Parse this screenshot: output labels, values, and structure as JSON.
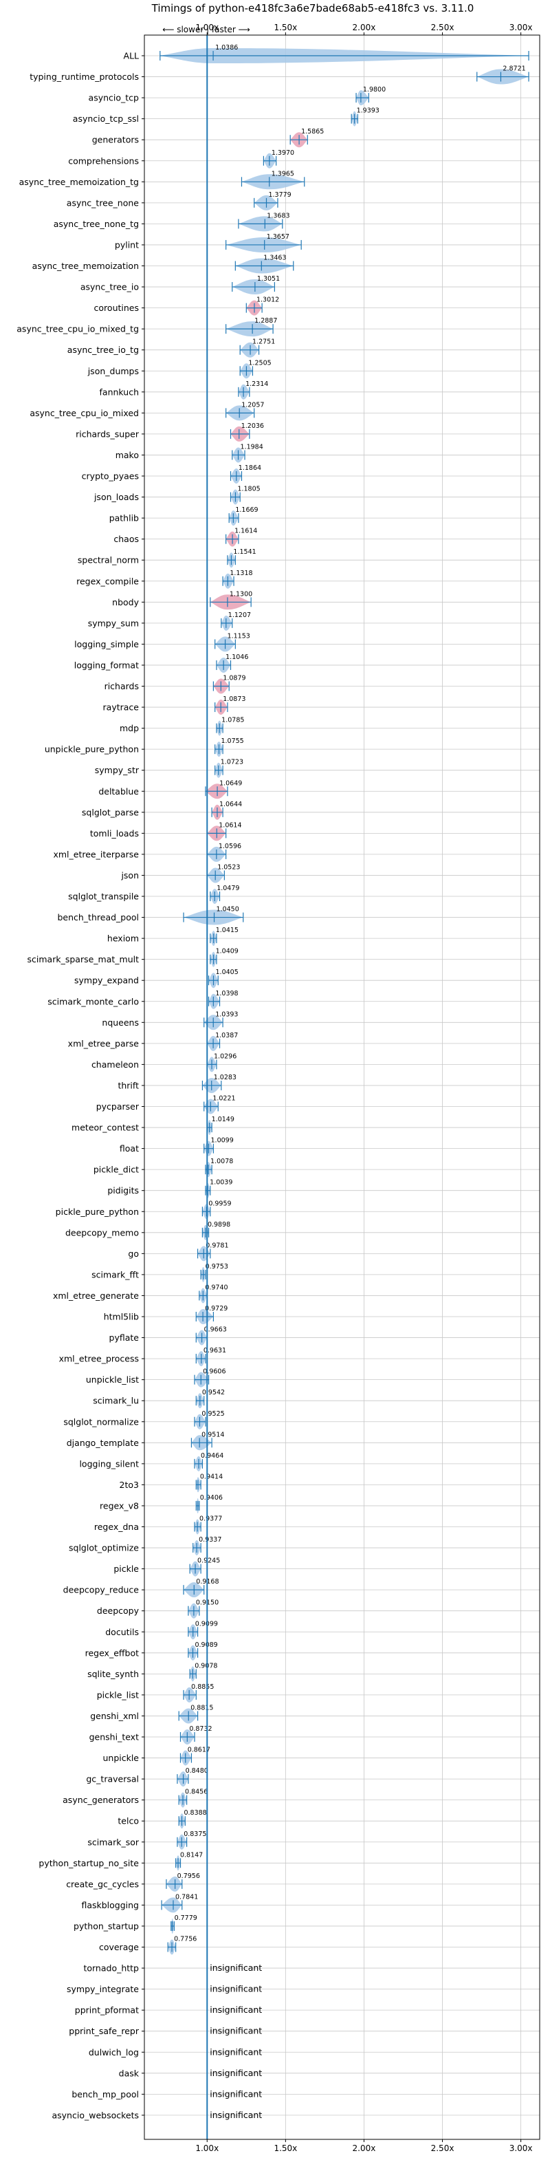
{
  "chart_data": {
    "type": "violin",
    "title": "Timings of python-e418fc3a6e7bade68ab5-e418fc3 vs. 3.11.0",
    "direction_hint": "⟵ slower | faster ⟶",
    "xlim": [
      0.6,
      3.12
    ],
    "x_ticks": [
      1.0,
      1.5,
      2.0,
      2.5,
      3.0
    ],
    "x_tick_labels": [
      "1.00x",
      "1.50x",
      "2.00x",
      "2.50x",
      "3.00x"
    ],
    "grid": true,
    "reference_line": 1.0,
    "colors": {
      "violin": "#a6c8e8",
      "violin_edge": "#7fb0dc",
      "significant": "#e8a0b4",
      "whisker": "#1f77b4",
      "grid": "#c8c8c8",
      "ref": "#1f77b4"
    },
    "benchmarks": [
      {
        "name": "ALL",
        "value": 1.0386,
        "label": "1.0386",
        "min": 0.7,
        "max": 3.05,
        "spread": 0.12,
        "hl": false
      },
      {
        "name": "typing_runtime_protocols",
        "value": 2.8721,
        "label": "2.8721",
        "min": 2.72,
        "max": 3.05,
        "spread": 0.09,
        "hl": false
      },
      {
        "name": "asyncio_tcp",
        "value": 1.98,
        "label": "1.9800",
        "min": 1.95,
        "max": 2.03,
        "spread": 0.03,
        "hl": false
      },
      {
        "name": "asyncio_tcp_ssl",
        "value": 1.9393,
        "label": "1.9393",
        "min": 1.92,
        "max": 1.96,
        "spread": 0.02,
        "hl": false
      },
      {
        "name": "generators",
        "value": 1.5865,
        "label": "1.5865",
        "min": 1.53,
        "max": 1.64,
        "spread": 0.04,
        "hl": true
      },
      {
        "name": "comprehensions",
        "value": 1.397,
        "label": "1.3970",
        "min": 1.36,
        "max": 1.44,
        "spread": 0.04,
        "hl": false
      },
      {
        "name": "async_tree_memoization_tg",
        "value": 1.3965,
        "label": "1.3965",
        "min": 1.22,
        "max": 1.62,
        "spread": 0.1,
        "hl": false
      },
      {
        "name": "async_tree_none",
        "value": 1.3779,
        "label": "1.3779",
        "min": 1.3,
        "max": 1.45,
        "spread": 0.05,
        "hl": false
      },
      {
        "name": "async_tree_none_tg",
        "value": 1.3683,
        "label": "1.3683",
        "min": 1.2,
        "max": 1.48,
        "spread": 0.08,
        "hl": false
      },
      {
        "name": "pylint",
        "value": 1.3657,
        "label": "1.3657",
        "min": 1.12,
        "max": 1.6,
        "spread": 0.12,
        "hl": false
      },
      {
        "name": "async_tree_memoization",
        "value": 1.3463,
        "label": "1.3463",
        "min": 1.18,
        "max": 1.55,
        "spread": 0.1,
        "hl": false
      },
      {
        "name": "async_tree_io",
        "value": 1.3051,
        "label": "1.3051",
        "min": 1.16,
        "max": 1.43,
        "spread": 0.08,
        "hl": false
      },
      {
        "name": "coroutines",
        "value": 1.3012,
        "label": "1.3012",
        "min": 1.25,
        "max": 1.35,
        "spread": 0.03,
        "hl": true
      },
      {
        "name": "async_tree_cpu_io_mixed_tg",
        "value": 1.2887,
        "label": "1.2887",
        "min": 1.12,
        "max": 1.42,
        "spread": 0.09,
        "hl": false
      },
      {
        "name": "async_tree_io_tg",
        "value": 1.2751,
        "label": "1.2751",
        "min": 1.21,
        "max": 1.33,
        "spread": 0.05,
        "hl": false
      },
      {
        "name": "json_dumps",
        "value": 1.2505,
        "label": "1.2505",
        "min": 1.21,
        "max": 1.29,
        "spread": 0.04,
        "hl": false
      },
      {
        "name": "fannkuch",
        "value": 1.2314,
        "label": "1.2314",
        "min": 1.2,
        "max": 1.27,
        "spread": 0.04,
        "hl": false
      },
      {
        "name": "async_tree_cpu_io_mixed",
        "value": 1.2057,
        "label": "1.2057",
        "min": 1.12,
        "max": 1.3,
        "spread": 0.06,
        "hl": false
      },
      {
        "name": "richards_super",
        "value": 1.2036,
        "label": "1.2036",
        "min": 1.15,
        "max": 1.27,
        "spread": 0.05,
        "hl": true
      },
      {
        "name": "mako",
        "value": 1.1984,
        "label": "1.1984",
        "min": 1.16,
        "max": 1.24,
        "spread": 0.03,
        "hl": false
      },
      {
        "name": "crypto_pyaes",
        "value": 1.1864,
        "label": "1.1864",
        "min": 1.15,
        "max": 1.22,
        "spread": 0.03,
        "hl": false
      },
      {
        "name": "json_loads",
        "value": 1.1805,
        "label": "1.1805",
        "min": 1.15,
        "max": 1.21,
        "spread": 0.03,
        "hl": false
      },
      {
        "name": "pathlib",
        "value": 1.1669,
        "label": "1.1669",
        "min": 1.14,
        "max": 1.2,
        "spread": 0.03,
        "hl": false
      },
      {
        "name": "chaos",
        "value": 1.1614,
        "label": "1.1614",
        "min": 1.12,
        "max": 1.2,
        "spread": 0.04,
        "hl": true
      },
      {
        "name": "spectral_norm",
        "value": 1.1541,
        "label": "1.1541",
        "min": 1.13,
        "max": 1.18,
        "spread": 0.02,
        "hl": false
      },
      {
        "name": "regex_compile",
        "value": 1.1318,
        "label": "1.1318",
        "min": 1.1,
        "max": 1.17,
        "spread": 0.03,
        "hl": false
      },
      {
        "name": "nbody",
        "value": 1.13,
        "label": "1.1300",
        "min": 1.02,
        "max": 1.28,
        "spread": 0.08,
        "hl": true
      },
      {
        "name": "sympy_sum",
        "value": 1.1207,
        "label": "1.1207",
        "min": 1.09,
        "max": 1.16,
        "spread": 0.03,
        "hl": false
      },
      {
        "name": "logging_simple",
        "value": 1.1153,
        "label": "1.1153",
        "min": 1.05,
        "max": 1.18,
        "spread": 0.05,
        "hl": false
      },
      {
        "name": "logging_format",
        "value": 1.1046,
        "label": "1.1046",
        "min": 1.06,
        "max": 1.15,
        "spread": 0.04,
        "hl": false
      },
      {
        "name": "richards",
        "value": 1.0879,
        "label": "1.0879",
        "min": 1.04,
        "max": 1.14,
        "spread": 0.04,
        "hl": true
      },
      {
        "name": "raytrace",
        "value": 1.0873,
        "label": "1.0873",
        "min": 1.05,
        "max": 1.13,
        "spread": 0.04,
        "hl": true
      },
      {
        "name": "mdp",
        "value": 1.0785,
        "label": "1.0785",
        "min": 1.06,
        "max": 1.1,
        "spread": 0.02,
        "hl": false
      },
      {
        "name": "unpickle_pure_python",
        "value": 1.0755,
        "label": "1.0755",
        "min": 1.05,
        "max": 1.1,
        "spread": 0.02,
        "hl": false
      },
      {
        "name": "sympy_str",
        "value": 1.0723,
        "label": "1.0723",
        "min": 1.05,
        "max": 1.1,
        "spread": 0.03,
        "hl": false
      },
      {
        "name": "deltablue",
        "value": 1.0649,
        "label": "1.0649",
        "min": 0.99,
        "max": 1.13,
        "spread": 0.05,
        "hl": true
      },
      {
        "name": "sqlglot_parse",
        "value": 1.0644,
        "label": "1.0644",
        "min": 1.03,
        "max": 1.1,
        "spread": 0.04,
        "hl": true
      },
      {
        "name": "tomli_loads",
        "value": 1.0614,
        "label": "1.0614",
        "min": 1.0,
        "max": 1.12,
        "spread": 0.05,
        "hl": true
      },
      {
        "name": "xml_etree_iterparse",
        "value": 1.0596,
        "label": "1.0596",
        "min": 1.0,
        "max": 1.12,
        "spread": 0.05,
        "hl": false
      },
      {
        "name": "json",
        "value": 1.0523,
        "label": "1.0523",
        "min": 1.0,
        "max": 1.11,
        "spread": 0.04,
        "hl": false
      },
      {
        "name": "sqlglot_transpile",
        "value": 1.0479,
        "label": "1.0479",
        "min": 1.02,
        "max": 1.08,
        "spread": 0.03,
        "hl": false
      },
      {
        "name": "bench_thread_pool",
        "value": 1.045,
        "label": "1.0450",
        "min": 0.85,
        "max": 1.23,
        "spread": 0.1,
        "hl": false
      },
      {
        "name": "hexiom",
        "value": 1.0415,
        "label": "1.0415",
        "min": 1.02,
        "max": 1.06,
        "spread": 0.02,
        "hl": false
      },
      {
        "name": "scimark_sparse_mat_mult",
        "value": 1.0409,
        "label": "1.0409",
        "min": 1.02,
        "max": 1.06,
        "spread": 0.02,
        "hl": false
      },
      {
        "name": "sympy_expand",
        "value": 1.0405,
        "label": "1.0405",
        "min": 1.01,
        "max": 1.07,
        "spread": 0.03,
        "hl": false
      },
      {
        "name": "scimark_monte_carlo",
        "value": 1.0398,
        "label": "1.0398",
        "min": 1.01,
        "max": 1.08,
        "spread": 0.03,
        "hl": false
      },
      {
        "name": "nqueens",
        "value": 1.0393,
        "label": "1.0393",
        "min": 0.98,
        "max": 1.1,
        "spread": 0.04,
        "hl": false
      },
      {
        "name": "xml_etree_parse",
        "value": 1.0387,
        "label": "1.0387",
        "min": 1.0,
        "max": 1.08,
        "spread": 0.03,
        "hl": false
      },
      {
        "name": "chameleon",
        "value": 1.0296,
        "label": "1.0296",
        "min": 1.0,
        "max": 1.06,
        "spread": 0.03,
        "hl": false
      },
      {
        "name": "thrift",
        "value": 1.0283,
        "label": "1.0283",
        "min": 0.97,
        "max": 1.09,
        "spread": 0.04,
        "hl": false
      },
      {
        "name": "pycparser",
        "value": 1.0221,
        "label": "1.0221",
        "min": 0.98,
        "max": 1.07,
        "spread": 0.04,
        "hl": false
      },
      {
        "name": "meteor_contest",
        "value": 1.0149,
        "label": "1.0149",
        "min": 1.0,
        "max": 1.03,
        "spread": 0.015,
        "hl": false
      },
      {
        "name": "float",
        "value": 1.0099,
        "label": "1.0099",
        "min": 0.98,
        "max": 1.04,
        "spread": 0.03,
        "hl": false
      },
      {
        "name": "pickle_dict",
        "value": 1.0078,
        "label": "1.0078",
        "min": 0.99,
        "max": 1.03,
        "spread": 0.02,
        "hl": false
      },
      {
        "name": "pidigits",
        "value": 1.0039,
        "label": "1.0039",
        "min": 0.99,
        "max": 1.02,
        "spread": 0.01,
        "hl": false
      },
      {
        "name": "pickle_pure_python",
        "value": 0.9959,
        "label": "0.9959",
        "min": 0.97,
        "max": 1.02,
        "spread": 0.02,
        "hl": false
      },
      {
        "name": "deepcopy_memo",
        "value": 0.9898,
        "label": "0.9898",
        "min": 0.97,
        "max": 1.01,
        "spread": 0.02,
        "hl": false
      },
      {
        "name": "go",
        "value": 0.9781,
        "label": "0.9781",
        "min": 0.94,
        "max": 1.02,
        "spread": 0.04,
        "hl": false
      },
      {
        "name": "scimark_fft",
        "value": 0.9753,
        "label": "0.9753",
        "min": 0.96,
        "max": 0.99,
        "spread": 0.015,
        "hl": false
      },
      {
        "name": "xml_etree_generate",
        "value": 0.974,
        "label": "0.9740",
        "min": 0.95,
        "max": 1.0,
        "spread": 0.02,
        "hl": false
      },
      {
        "name": "html5lib",
        "value": 0.9729,
        "label": "0.9729",
        "min": 0.93,
        "max": 1.04,
        "spread": 0.04,
        "hl": false
      },
      {
        "name": "pyflate",
        "value": 0.9663,
        "label": "0.9663",
        "min": 0.93,
        "max": 1.0,
        "spread": 0.03,
        "hl": false
      },
      {
        "name": "xml_etree_process",
        "value": 0.9631,
        "label": "0.9631",
        "min": 0.93,
        "max": 0.99,
        "spread": 0.03,
        "hl": false
      },
      {
        "name": "unpickle_list",
        "value": 0.9606,
        "label": "0.9606",
        "min": 0.92,
        "max": 1.01,
        "spread": 0.04,
        "hl": false
      },
      {
        "name": "scimark_lu",
        "value": 0.9542,
        "label": "0.9542",
        "min": 0.93,
        "max": 0.98,
        "spread": 0.02,
        "hl": false
      },
      {
        "name": "sqlglot_normalize",
        "value": 0.9525,
        "label": "0.9525",
        "min": 0.92,
        "max": 0.99,
        "spread": 0.03,
        "hl": false
      },
      {
        "name": "django_template",
        "value": 0.9514,
        "label": "0.9514",
        "min": 0.9,
        "max": 1.03,
        "spread": 0.05,
        "hl": false
      },
      {
        "name": "logging_silent",
        "value": 0.9464,
        "label": "0.9464",
        "min": 0.92,
        "max": 0.97,
        "spread": 0.02,
        "hl": false
      },
      {
        "name": "2to3",
        "value": 0.9414,
        "label": "0.9414",
        "min": 0.93,
        "max": 0.96,
        "spread": 0.01,
        "hl": false
      },
      {
        "name": "regex_v8",
        "value": 0.9406,
        "label": "0.9406",
        "min": 0.93,
        "max": 0.95,
        "spread": 0.01,
        "hl": false
      },
      {
        "name": "regex_dna",
        "value": 0.9377,
        "label": "0.9377",
        "min": 0.92,
        "max": 0.96,
        "spread": 0.015,
        "hl": false
      },
      {
        "name": "sqlglot_optimize",
        "value": 0.9337,
        "label": "0.9337",
        "min": 0.91,
        "max": 0.96,
        "spread": 0.02,
        "hl": false
      },
      {
        "name": "pickle",
        "value": 0.9245,
        "label": "0.9245",
        "min": 0.89,
        "max": 0.96,
        "spread": 0.03,
        "hl": false
      },
      {
        "name": "deepcopy_reduce",
        "value": 0.9168,
        "label": "0.9168",
        "min": 0.85,
        "max": 0.98,
        "spread": 0.05,
        "hl": false
      },
      {
        "name": "deepcopy",
        "value": 0.915,
        "label": "0.9150",
        "min": 0.88,
        "max": 0.95,
        "spread": 0.03,
        "hl": false
      },
      {
        "name": "docutils",
        "value": 0.9099,
        "label": "0.9099",
        "min": 0.88,
        "max": 0.94,
        "spread": 0.03,
        "hl": false
      },
      {
        "name": "regex_effbot",
        "value": 0.9089,
        "label": "0.9089",
        "min": 0.88,
        "max": 0.94,
        "spread": 0.02,
        "hl": false
      },
      {
        "name": "sqlite_synth",
        "value": 0.9078,
        "label": "0.9078",
        "min": 0.89,
        "max": 0.93,
        "spread": 0.02,
        "hl": false
      },
      {
        "name": "pickle_list",
        "value": 0.8855,
        "label": "0.8855",
        "min": 0.85,
        "max": 0.93,
        "spread": 0.03,
        "hl": false
      },
      {
        "name": "genshi_xml",
        "value": 0.8815,
        "label": "0.8815",
        "min": 0.82,
        "max": 0.94,
        "spread": 0.04,
        "hl": false
      },
      {
        "name": "genshi_text",
        "value": 0.8732,
        "label": "0.8732",
        "min": 0.83,
        "max": 0.92,
        "spread": 0.03,
        "hl": false
      },
      {
        "name": "unpickle",
        "value": 0.8617,
        "label": "0.8617",
        "min": 0.83,
        "max": 0.9,
        "spread": 0.03,
        "hl": false
      },
      {
        "name": "gc_traversal",
        "value": 0.848,
        "label": "0.8480",
        "min": 0.81,
        "max": 0.88,
        "spread": 0.03,
        "hl": false
      },
      {
        "name": "async_generators",
        "value": 0.8456,
        "label": "0.8456",
        "min": 0.82,
        "max": 0.87,
        "spread": 0.02,
        "hl": false
      },
      {
        "name": "telco",
        "value": 0.8388,
        "label": "0.8388",
        "min": 0.82,
        "max": 0.86,
        "spread": 0.015,
        "hl": false
      },
      {
        "name": "scimark_sor",
        "value": 0.8375,
        "label": "0.8375",
        "min": 0.81,
        "max": 0.87,
        "spread": 0.02,
        "hl": false
      },
      {
        "name": "python_startup_no_site",
        "value": 0.8147,
        "label": "0.8147",
        "min": 0.8,
        "max": 0.83,
        "spread": 0.01,
        "hl": false
      },
      {
        "name": "create_gc_cycles",
        "value": 0.7956,
        "label": "0.7956",
        "min": 0.74,
        "max": 0.84,
        "spread": 0.04,
        "hl": false
      },
      {
        "name": "flaskblogging",
        "value": 0.7841,
        "label": "0.7841",
        "min": 0.71,
        "max": 0.84,
        "spread": 0.05,
        "hl": false
      },
      {
        "name": "python_startup",
        "value": 0.7779,
        "label": "0.7779",
        "min": 0.77,
        "max": 0.79,
        "spread": 0.008,
        "hl": false
      },
      {
        "name": "coverage",
        "value": 0.7756,
        "label": "0.7756",
        "min": 0.75,
        "max": 0.8,
        "spread": 0.02,
        "hl": false
      }
    ],
    "insignificant_label": "insignificant",
    "insignificant": [
      "tornado_http",
      "sympy_integrate",
      "pprint_pformat",
      "pprint_safe_repr",
      "dulwich_log",
      "dask",
      "bench_mp_pool",
      "asyncio_websockets"
    ]
  }
}
